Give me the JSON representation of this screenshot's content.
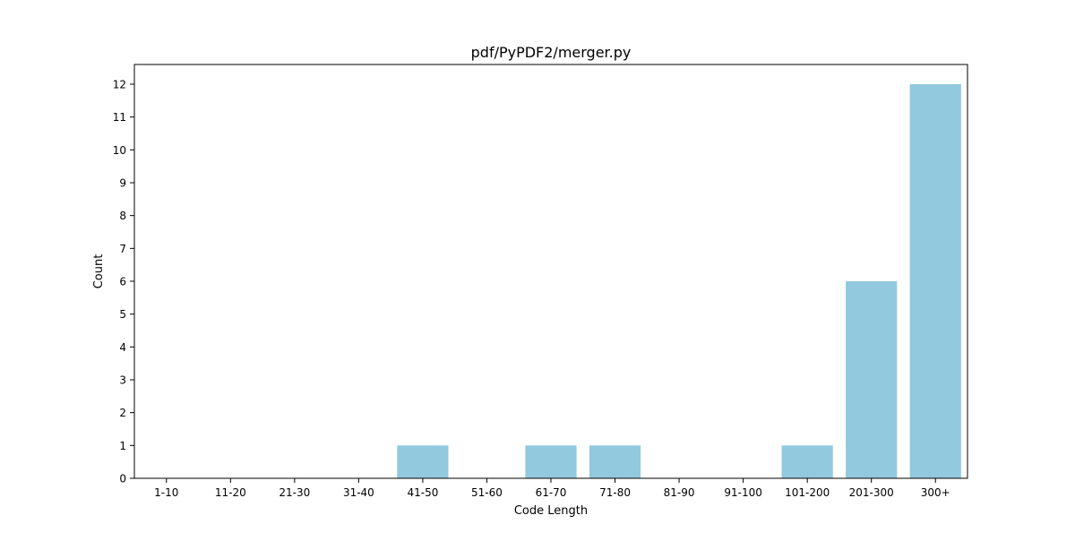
{
  "chart_data": {
    "type": "bar",
    "title": "pdf/PyPDF2/merger.py",
    "xlabel": "Code Length",
    "ylabel": "Count",
    "categories": [
      "1-10",
      "11-20",
      "21-30",
      "31-40",
      "41-50",
      "51-60",
      "61-70",
      "71-80",
      "81-90",
      "91-100",
      "101-200",
      "201-300",
      "300+"
    ],
    "values": [
      0,
      0,
      0,
      0,
      1,
      0,
      1,
      1,
      0,
      0,
      1,
      6,
      12
    ],
    "ylim": [
      0,
      12.6
    ],
    "yticks": [
      0,
      1,
      2,
      3,
      4,
      5,
      6,
      7,
      8,
      9,
      10,
      11,
      12
    ],
    "grid": false,
    "legend": "none",
    "colors": {
      "bar": "#92c9de",
      "axis": "#000000",
      "background": "#ffffff"
    }
  }
}
